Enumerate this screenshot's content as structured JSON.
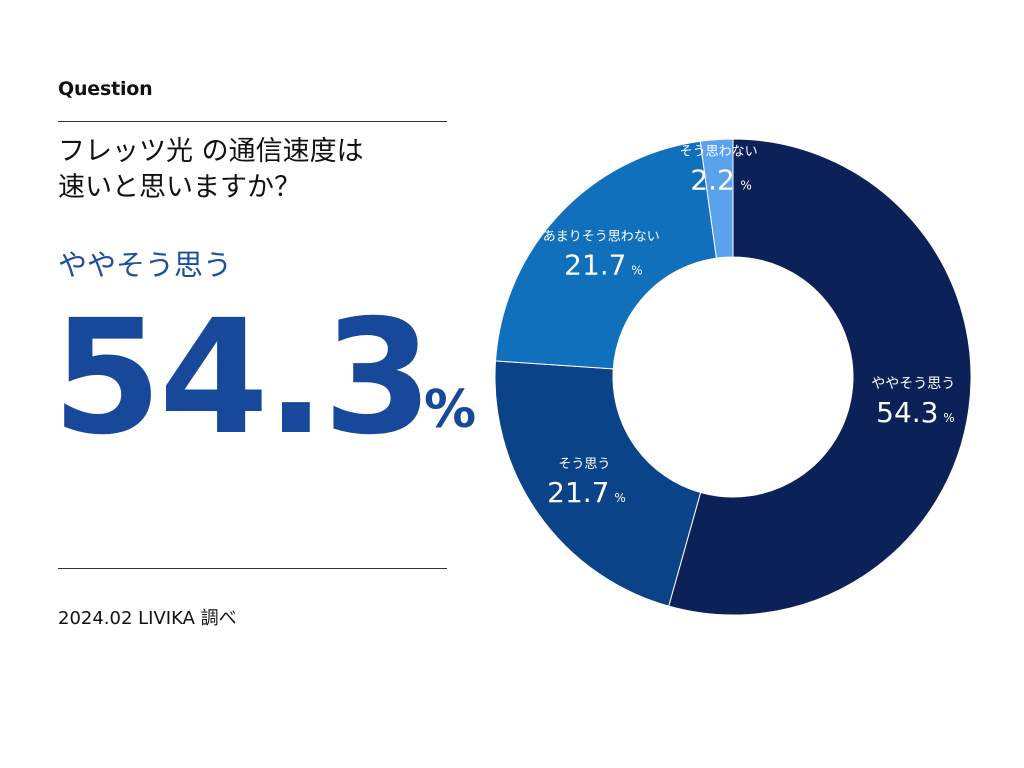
{
  "header": {
    "label": "Question",
    "question_line1": "フレッツ光 の通信速度は",
    "question_line2": "速いと思いますか？"
  },
  "highlight": {
    "label": "ややそう思う",
    "value": "54.3",
    "unit": "%"
  },
  "footer": {
    "source": "2024.02 LIVIKA 調べ"
  },
  "chart_data": {
    "type": "pie",
    "donut": true,
    "unit": "%",
    "categories": [
      "ややそう思う",
      "そう思う",
      "あまりそう思わない",
      "そう思わない"
    ],
    "values": [
      54.3,
      21.7,
      21.7,
      2.2
    ],
    "colors": [
      "#0c2157",
      "#0b4389",
      "#1170bc",
      "#5ba2ec"
    ],
    "start": "12 o'clock",
    "direction": "clockwise"
  }
}
